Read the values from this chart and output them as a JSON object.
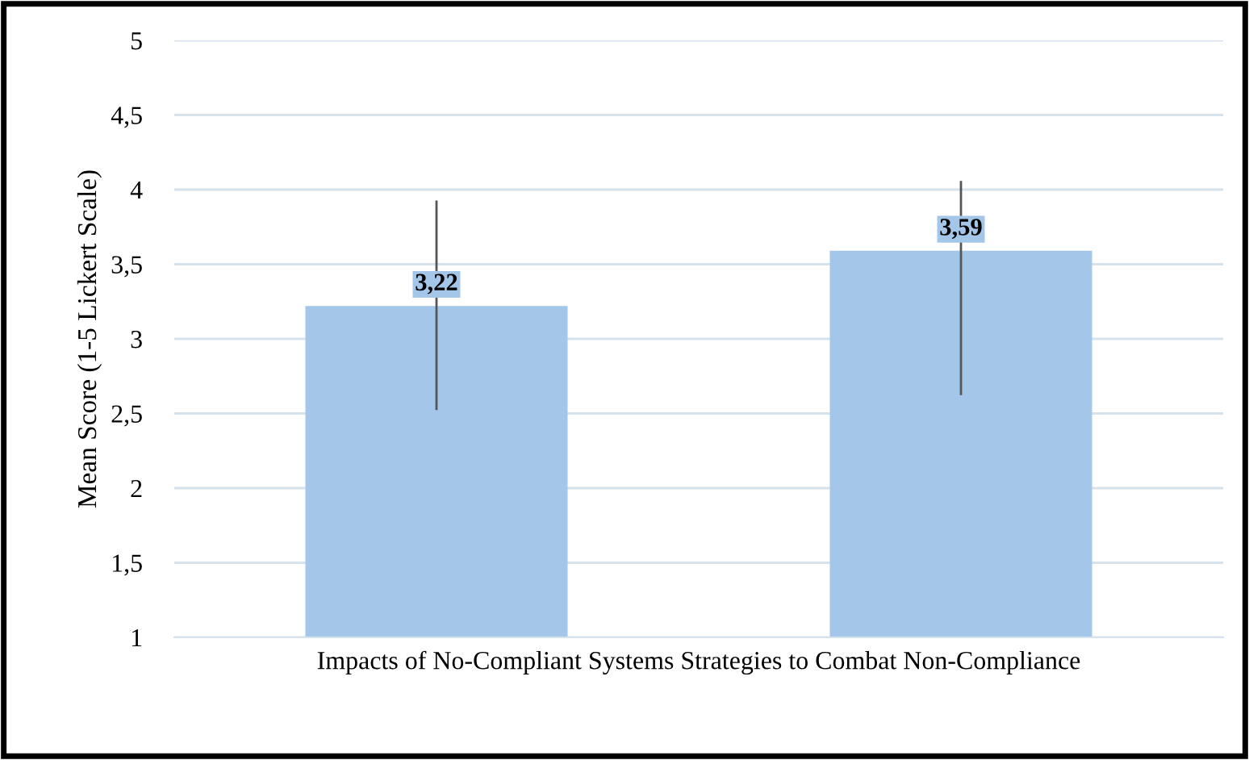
{
  "chart_data": {
    "type": "bar",
    "ylabel": "Mean Score (1-5 Lickert Scale)",
    "categories": [
      "Impacts of No-Compliant Systems Strategies to Combat Non-Compliance"
    ],
    "series": [
      {
        "color": "#a3c6e9",
        "values": [
          3.22
        ],
        "errors": [
          [
            2.53,
            3.92
          ]
        ],
        "value_labels": [
          "3,22"
        ]
      },
      {
        "color": "#a3c6e9",
        "values": [
          3.59
        ],
        "errors": [
          [
            2.63,
            4.05
          ]
        ],
        "value_labels": [
          "3,59"
        ]
      }
    ],
    "ylim": [
      1,
      5
    ],
    "yticks": [
      1,
      {
        "value": 1.5,
        "label": "1,5"
      },
      2,
      {
        "value": 2.5,
        "label": "2,5"
      },
      3,
      {
        "value": 3.5,
        "label": "3,5"
      },
      4,
      {
        "value": 4.5,
        "label": "4,5"
      },
      5
    ],
    "grid": "y"
  }
}
